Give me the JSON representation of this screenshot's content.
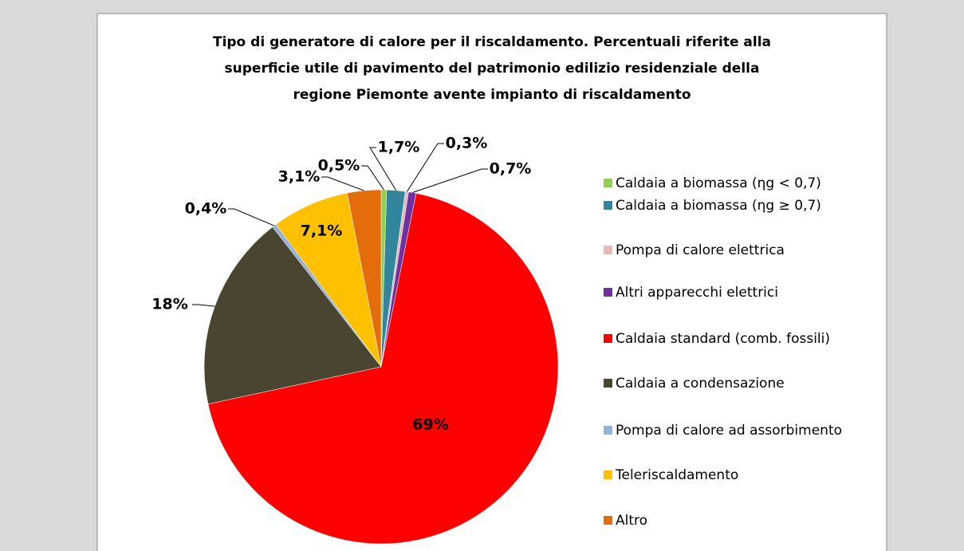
{
  "chart_data": {
    "type": "pie",
    "title": [
      "Tipo di generatore di calore per il riscaldamento. Percentuali riferite alla",
      "superficie utile di pavimento del patrimonio edilizio residenziale della",
      "regione Piemonte avente impianto di riscaldamento"
    ],
    "categories": [
      "Caldaia a biomassa (ηg < 0,7)",
      "Caldaia a biomassa (ηg ≥ 0,7)",
      "Pompa di calore elettrica",
      "Altri apparecchi elettrici",
      "Caldaia standard (comb. fossili)",
      "Caldaia a condensazione",
      "Pompa di calore ad assorbimento",
      "Teleriscaldamento",
      "Altro"
    ],
    "values": [
      0.5,
      1.7,
      0.3,
      0.7,
      69,
      18,
      0.4,
      7.1,
      3.1
    ],
    "value_labels": [
      "0,5%",
      "1,7%",
      "0,3%",
      "0,7%",
      "69%",
      "18%",
      "0,4%",
      "7,1%",
      "3,1%"
    ],
    "colors": [
      "#92d050",
      "#31859c",
      "#e6b9b8",
      "#7030a0",
      "#ff0000",
      "#4a4530",
      "#95b3d7",
      "#ffc000",
      "#e46c0a"
    ],
    "legend": "right"
  }
}
